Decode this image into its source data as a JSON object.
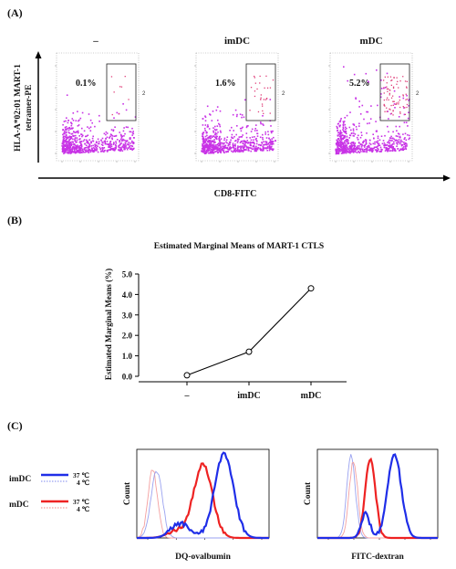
{
  "panel_a": {
    "label": "(A)",
    "y_axis_label_line1": "HLA-A*02:01 MART-1",
    "y_axis_label_line2": "tetramer-PE",
    "x_axis_label": "CD8-FITC",
    "plots": [
      {
        "condition": "–",
        "percent": "0.1%",
        "gate_label": "2",
        "density": 0.05
      },
      {
        "condition": "imDC",
        "percent": "1.6%",
        "gate_label": "2",
        "density": 0.35
      },
      {
        "condition": "mDC",
        "percent": "5.2%",
        "gate_label": "2",
        "density": 1.0
      }
    ],
    "colors": {
      "events": "#c832e6",
      "gated": "#e0407a"
    }
  },
  "panel_b": {
    "label": "(B)",
    "chart_data": {
      "type": "line",
      "title": "Estimated Marginal Means of  MART-1 CTLS",
      "ylabel": "Estimated Marginal Means (%)",
      "xlabel": "",
      "categories": [
        "–",
        "imDC",
        "mDC"
      ],
      "series": [
        {
          "values": [
            0.05,
            1.2,
            4.3
          ]
        }
      ],
      "ylim": [
        0,
        5.0
      ],
      "yticks": [
        "0.0",
        "1.0",
        "2.0",
        "3.0",
        "4.0",
        "5.0"
      ],
      "grid": false
    }
  },
  "panel_c": {
    "label": "(C)",
    "legend": [
      {
        "group": "imDC",
        "entries": [
          "37 ℃",
          "4 ℃"
        ],
        "color": "#1f2ee8"
      },
      {
        "group": "mDC",
        "entries": [
          "37 ℃",
          "4 ℃"
        ],
        "color": "#ee2222"
      }
    ],
    "histograms": [
      {
        "x_label": "DQ-ovalbumin",
        "y_label": "Count"
      },
      {
        "x_label": "FITC-dextran",
        "y_label": "Count"
      }
    ]
  }
}
